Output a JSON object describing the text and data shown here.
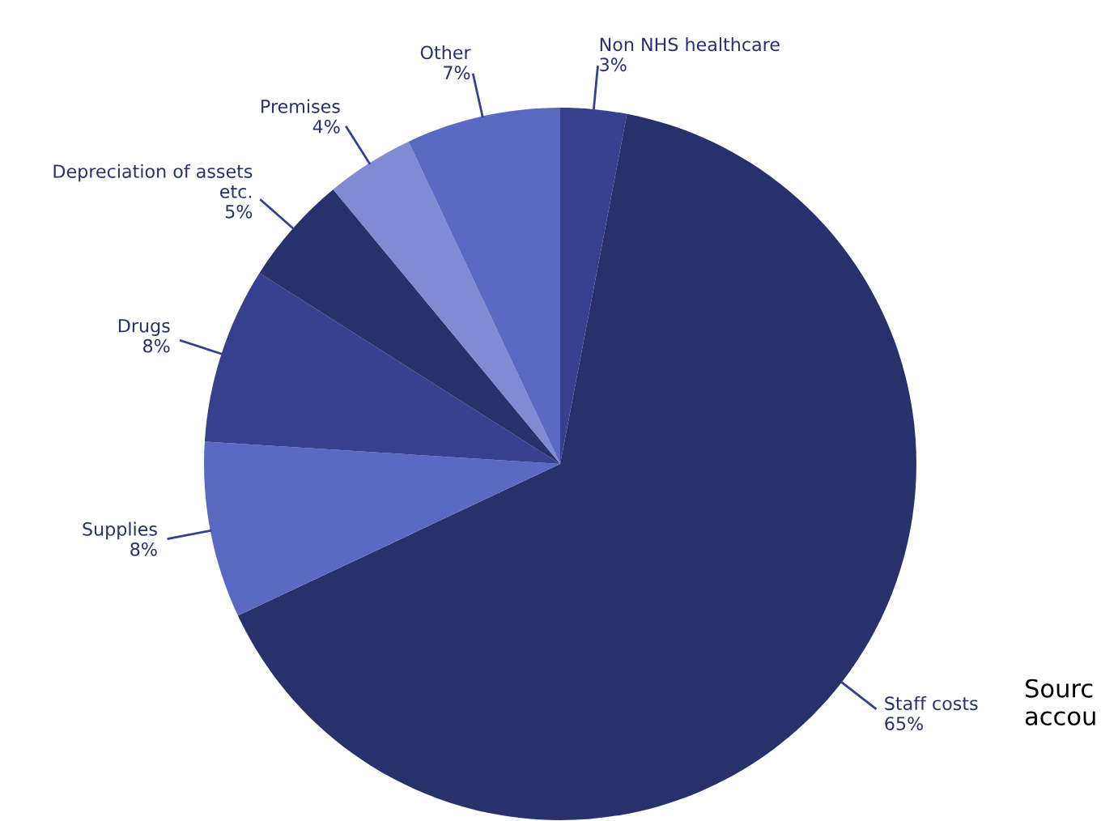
{
  "chart_data": {
    "type": "pie",
    "categories": [
      "Non NHS healthcare",
      "Staff costs",
      "Supplies",
      "Drugs",
      "Depreciation of assets etc.",
      "Premises",
      "Other"
    ],
    "values": [
      3,
      65,
      8,
      8,
      5,
      4,
      7
    ],
    "colors": [
      "#35408f",
      "#27316b",
      "#5a69c2",
      "#35408f",
      "#27316b",
      "#7f8bd2",
      "#5a69c2"
    ],
    "value_labels": [
      "3%",
      "65%",
      "8%",
      "8%",
      "5%",
      "4%",
      "7%"
    ],
    "annotations": [
      "Sourc\naccou"
    ]
  }
}
